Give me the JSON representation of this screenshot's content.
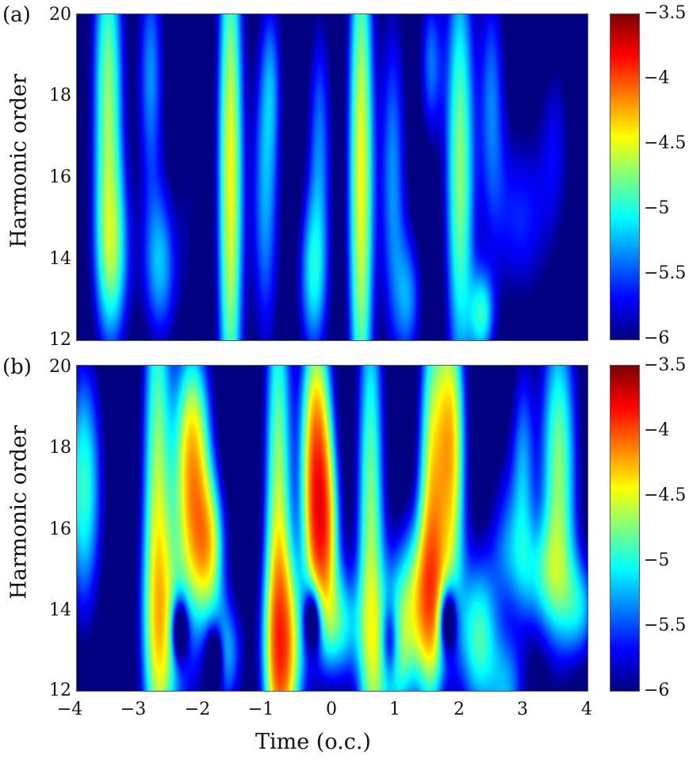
{
  "figure": {
    "xlabel": "Time (o.c.)",
    "ylabel": "Harmonic order"
  },
  "chart_data": [
    {
      "type": "heatmap",
      "panel": "(a)",
      "title": "",
      "xlabel": "Time (o.c.)",
      "ylabel": "Harmonic order",
      "xlim": [
        -4,
        4
      ],
      "ylim": [
        12,
        20
      ],
      "x_ticks": [
        "-4",
        "-3",
        "-2",
        "-1",
        "0",
        "1",
        "2",
        "3",
        "4"
      ],
      "y_ticks": [
        "12",
        "14",
        "16",
        "18",
        "20"
      ],
      "colorbar": {
        "range": [
          -6,
          -3.5
        ],
        "ticks": [
          "-3.5",
          "-4",
          "-4.5",
          "-5",
          "-5.5",
          "-6"
        ],
        "colormap": "jet"
      },
      "features": [
        {
          "t": -3.5,
          "h_from": 14,
          "h_to": 20,
          "level": -4.6,
          "desc": "yellow-green band"
        },
        {
          "t": -1.6,
          "h_from": 12,
          "h_to": 20,
          "level": -4.2,
          "desc": "orange band"
        },
        {
          "t": 0.45,
          "h_from": 12,
          "h_to": 20,
          "level": -4.2,
          "desc": "orange band"
        },
        {
          "t": 2.0,
          "h_from": 12,
          "h_to": 20,
          "level": -4.6,
          "desc": "yellow-green band"
        },
        {
          "t": 3.3,
          "h_from": 12,
          "h_to": 20,
          "level": -6.0,
          "desc": "dark blue background"
        }
      ]
    },
    {
      "type": "heatmap",
      "panel": "(b)",
      "title": "",
      "xlabel": "Time (o.c.)",
      "ylabel": "Harmonic order",
      "xlim": [
        -4,
        4
      ],
      "ylim": [
        12,
        20
      ],
      "x_ticks": [
        "-4",
        "-3",
        "-2",
        "-1",
        "0",
        "1",
        "2",
        "3",
        "4"
      ],
      "y_ticks": [
        "12",
        "14",
        "16",
        "18",
        "20"
      ],
      "colorbar": {
        "range": [
          -6,
          -3.5
        ],
        "ticks": [
          "-3.5",
          "-4",
          "-4.5",
          "-5",
          "-5.5",
          "-6"
        ],
        "colormap": "jet"
      },
      "features": [
        {
          "t": -2.1,
          "h_from": 15,
          "h_to": 20,
          "level": -3.9,
          "desc": "red blob"
        },
        {
          "t": -0.25,
          "h_from": 15,
          "h_to": 20,
          "level": -3.6,
          "desc": "dark red peak"
        },
        {
          "t": 1.8,
          "h_from": 15.5,
          "h_to": 20,
          "level": -3.85,
          "desc": "red blob"
        },
        {
          "t": -0.8,
          "h_from": 12,
          "h_to": 15,
          "level": -4.3,
          "desc": "orange base"
        },
        {
          "t": 3.6,
          "h_from": 15,
          "h_to": 20,
          "level": -4.6,
          "desc": "yellow-green band"
        }
      ]
    }
  ],
  "model": {
    "a": {
      "base": -6.3,
      "blobs": [
        [
          -3.52,
          18.0,
          0.17,
          3.2,
          1.75
        ],
        [
          -3.45,
          14.0,
          0.2,
          1.6,
          1.2
        ],
        [
          -2.85,
          18.5,
          0.15,
          2.2,
          1.0
        ],
        [
          -2.7,
          13.8,
          0.2,
          1.4,
          1.1
        ],
        [
          -2.25,
          15.5,
          0.12,
          2.5,
          0.3
        ],
        [
          -1.6,
          16.0,
          0.14,
          5.0,
          2.15
        ],
        [
          -1.05,
          15.5,
          0.16,
          2.8,
          1.05
        ],
        [
          -0.95,
          18.5,
          0.12,
          1.5,
          0.6
        ],
        [
          -0.3,
          13.5,
          0.17,
          1.5,
          1.2
        ],
        [
          -0.2,
          17.0,
          0.14,
          2.2,
          0.9
        ],
        [
          0.45,
          16.0,
          0.14,
          5.0,
          2.15
        ],
        [
          0.95,
          16.0,
          0.15,
          3.0,
          1.0
        ],
        [
          1.2,
          13.0,
          0.15,
          1.2,
          0.9
        ],
        [
          1.55,
          18.8,
          0.13,
          1.4,
          0.9
        ],
        [
          2.0,
          16.2,
          0.16,
          4.0,
          1.75
        ],
        [
          2.35,
          12.6,
          0.14,
          0.8,
          1.3
        ],
        [
          2.5,
          18.0,
          0.15,
          2.2,
          0.9
        ],
        [
          2.95,
          15.0,
          0.35,
          1.6,
          0.7
        ],
        [
          3.5,
          17.0,
          0.18,
          1.7,
          0.5
        ]
      ]
    },
    "b": {
      "base": -6.3,
      "blobs": [
        [
          -3.9,
          17.0,
          0.2,
          2.2,
          1.5
        ],
        [
          -2.75,
          16.5,
          0.16,
          5.0,
          1.8
        ],
        [
          -2.55,
          13.5,
          0.28,
          1.8,
          1.3
        ],
        [
          -2.2,
          17.6,
          0.2,
          2.0,
          2.55
        ],
        [
          -1.95,
          15.5,
          0.18,
          1.2,
          1.9
        ],
        [
          -1.7,
          12.9,
          0.2,
          1.0,
          1.2
        ],
        [
          -0.85,
          16.0,
          0.15,
          5.0,
          1.9
        ],
        [
          -0.75,
          13.0,
          0.22,
          1.6,
          2.1
        ],
        [
          -0.25,
          18.0,
          0.17,
          2.2,
          2.7
        ],
        [
          -0.15,
          15.8,
          0.17,
          1.5,
          2.2
        ],
        [
          0.1,
          13.6,
          0.25,
          1.0,
          1.3
        ],
        [
          0.6,
          15.5,
          0.15,
          5.0,
          1.8
        ],
        [
          0.95,
          12.8,
          0.22,
          1.3,
          1.4
        ],
        [
          1.4,
          14.2,
          0.3,
          1.4,
          1.9
        ],
        [
          1.55,
          16.5,
          0.14,
          3.5,
          1.9
        ],
        [
          1.85,
          18.0,
          0.16,
          2.5,
          2.45
        ],
        [
          2.3,
          13.3,
          0.22,
          1.4,
          1.5
        ],
        [
          2.75,
          13.5,
          0.2,
          2.5,
          1.4
        ],
        [
          3.0,
          17.5,
          0.13,
          2.0,
          0.9
        ],
        [
          3.55,
          17.4,
          0.2,
          2.8,
          1.75
        ],
        [
          3.9,
          14.0,
          0.2,
          0.9,
          1.0
        ],
        [
          3.3,
          14.8,
          0.3,
          1.0,
          1.0
        ]
      ],
      "holes": [
        [
          -2.4,
          13.5,
          0.1,
          0.6,
          1.6
        ],
        [
          -1.85,
          12.8,
          0.1,
          0.6,
          1.4
        ],
        [
          -0.3,
          13.8,
          0.1,
          0.6,
          1.6
        ],
        [
          0.9,
          13.2,
          0.1,
          0.7,
          1.2
        ],
        [
          1.8,
          13.8,
          0.1,
          0.6,
          1.7
        ],
        [
          2.75,
          13.8,
          0.2,
          1.0,
          1.0
        ]
      ]
    }
  }
}
